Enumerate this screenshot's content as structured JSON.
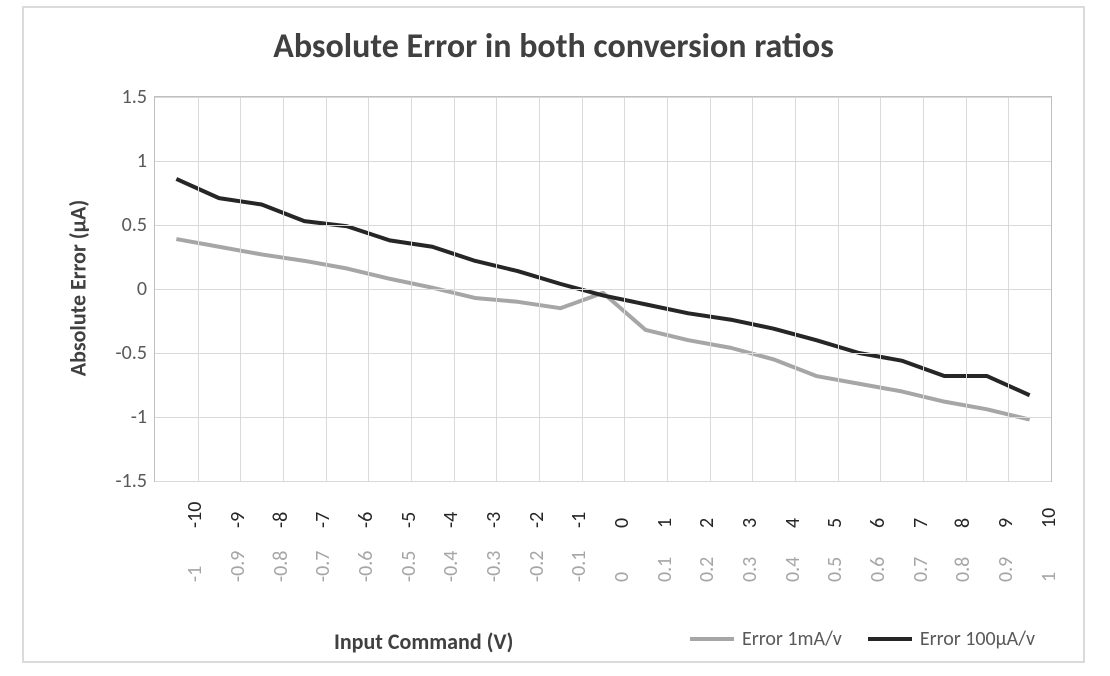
{
  "chart": {
    "type": "line",
    "title": "Absolute Error in both conversion ratios",
    "title_fontsize": 34,
    "title_color": "#404040",
    "background_color": "#ffffff",
    "outer_border_color": "#dbdbdb",
    "plot_border_color": "#bfbfbf",
    "grid_color": "#d9d9d9",
    "y_axis": {
      "label": "Absolute Error (µA)",
      "label_fontsize": 22,
      "label_color": "#404040",
      "ylim": [
        -1.5,
        1.5
      ],
      "ticks": [
        -1.5,
        -1,
        -0.5,
        0,
        0.5,
        1,
        1.5
      ],
      "tick_fontsize": 20,
      "tick_color": "#595959"
    },
    "x_axis": {
      "label": "Input Command (V)",
      "label_fontsize": 22,
      "label_color": "#404040",
      "tick_fontsize": 20,
      "ticks_primary": {
        "labels": [
          "-10",
          "-9",
          "-8",
          "-7",
          "-6",
          "-5",
          "-4",
          "-3",
          "-2",
          "-1",
          "0",
          "1",
          "2",
          "3",
          "4",
          "5",
          "6",
          "7",
          "8",
          "9",
          "10"
        ],
        "color": "#262626"
      },
      "ticks_secondary": {
        "labels": [
          "-1",
          "-0.9",
          "-0.8",
          "-0.7",
          "-0.6",
          "-0.5",
          "-0.4",
          "-0.3",
          "-0.2",
          "-0.1",
          "0",
          "0.1",
          "0.2",
          "0.3",
          "0.4",
          "0.5",
          "0.6",
          "0.7",
          "0.8",
          "0.9",
          "1"
        ],
        "color": "#a6a6a6"
      }
    },
    "series": [
      {
        "name": "Error 1mA/v",
        "legend_label": "Error 1mA/v",
        "color": "#a6a6a6",
        "line_width": 4,
        "x_index": [
          0,
          1,
          2,
          3,
          4,
          5,
          6,
          7,
          8,
          9,
          10,
          11,
          12,
          13,
          14,
          15,
          16,
          17,
          18,
          19,
          20
        ],
        "y": [
          0.39,
          0.33,
          0.27,
          0.22,
          0.16,
          0.08,
          0.01,
          -0.07,
          -0.1,
          -0.15,
          -0.03,
          -0.32,
          -0.4,
          -0.46,
          -0.55,
          -0.68,
          -0.74,
          -0.8,
          -0.88,
          -0.94,
          -1.02
        ]
      },
      {
        "name": "Error 100µA/v",
        "legend_label": "Error 100µA/v",
        "color": "#262626",
        "line_width": 4,
        "x_index": [
          0,
          1,
          2,
          3,
          4,
          5,
          6,
          7,
          8,
          9,
          10,
          11,
          12,
          13,
          14,
          15,
          16,
          17,
          18,
          19,
          20
        ],
        "y": [
          0.86,
          0.71,
          0.66,
          0.53,
          0.49,
          0.38,
          0.33,
          0.22,
          0.14,
          0.04,
          -0.05,
          -0.12,
          -0.19,
          -0.24,
          -0.31,
          -0.4,
          -0.5,
          -0.56,
          -0.68,
          -0.68,
          -0.83
        ]
      }
    ],
    "legend": {
      "position": "bottom-right",
      "swatch_width": 44,
      "swatch_height": 4,
      "fontsize": 20,
      "text_color": "#595959"
    }
  }
}
